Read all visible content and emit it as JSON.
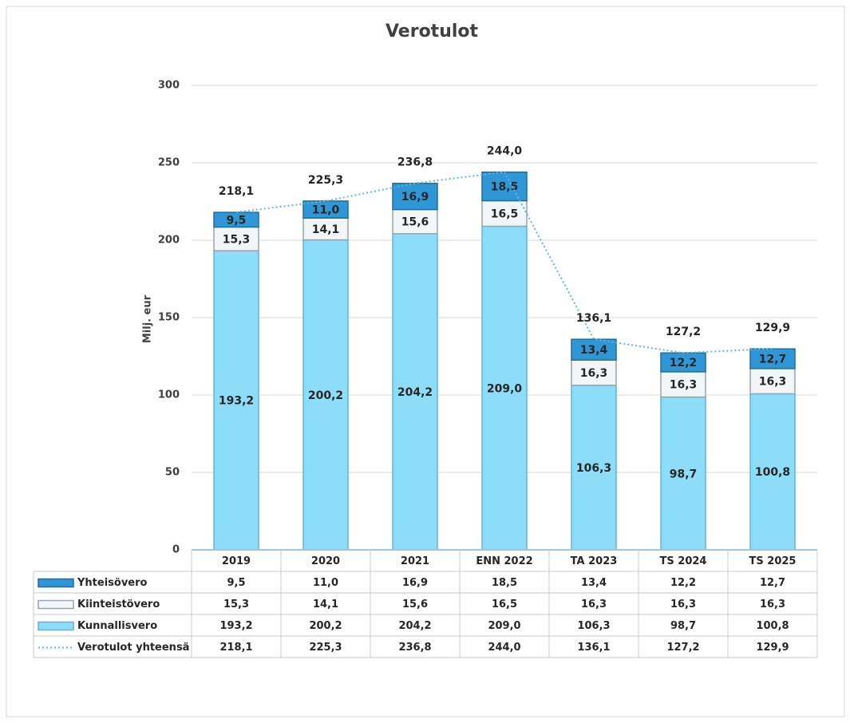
{
  "chart_data": {
    "type": "bar",
    "stacked": true,
    "title": "Verotulot",
    "y_label": "Milj. eur",
    "categories": [
      "2019",
      "2020",
      "2021",
      "ENN 2022",
      "TA 2023",
      "TS 2024",
      "TS 2025"
    ],
    "ylim": [
      0,
      300
    ],
    "yticks": [
      0,
      50,
      100,
      150,
      200,
      250,
      300
    ],
    "grid": true,
    "data_table": true,
    "series": [
      {
        "name": "Kunnallisvero",
        "color": "#8ddcf8",
        "values": [
          193.2,
          200.2,
          204.2,
          209.0,
          106.3,
          98.7,
          100.8
        ],
        "value_labels": [
          "193,2",
          "200,2",
          "204,2",
          "209,0",
          "106,3",
          "98,7",
          "100,8"
        ]
      },
      {
        "name": "Kiinteistövero",
        "color": "#f3f6f8",
        "values": [
          15.3,
          14.1,
          15.6,
          16.5,
          16.3,
          16.3,
          16.3
        ],
        "value_labels": [
          "15,3",
          "14,1",
          "15,6",
          "16,5",
          "16,3",
          "16,3",
          "16,3"
        ]
      },
      {
        "name": "Yhteisövero",
        "color": "#2f97d6",
        "values": [
          9.5,
          11.0,
          16.9,
          18.5,
          13.4,
          12.2,
          12.7
        ],
        "value_labels": [
          "9,5",
          "11,0",
          "16,9",
          "18,5",
          "13,4",
          "12,2",
          "12,7"
        ]
      },
      {
        "name": "Verotulot yhteensä",
        "type": "line",
        "style": "dotted",
        "color": "#5fb8dc",
        "values": [
          218.1,
          225.3,
          236.8,
          244.0,
          136.1,
          127.2,
          129.9
        ],
        "value_labels": [
          "218,1",
          "225,3",
          "236,8",
          "244,0",
          "136,1",
          "127,2",
          "129,9"
        ]
      }
    ]
  }
}
